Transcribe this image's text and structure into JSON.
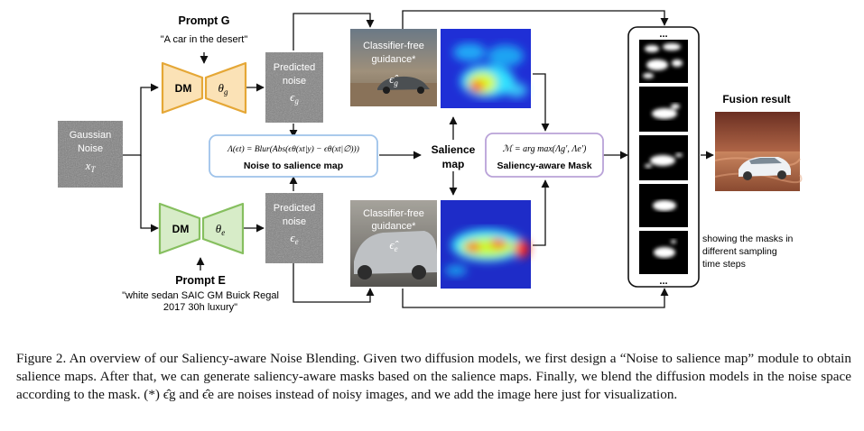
{
  "prompts": {
    "g_title": "Prompt G",
    "g_text": "\"A car in the desert\"",
    "e_title": "Prompt E",
    "e_text_line1": "\"white sedan SAIC GM Buick Regal",
    "e_text_line2": "2017 30h luxury\""
  },
  "models": {
    "dm_label": "DM",
    "theta_g": "θ",
    "theta_g_sub": "g",
    "theta_e": "θ",
    "theta_e_sub": "e"
  },
  "noise_boxes": {
    "gaussian_line1": "Gaussian",
    "gaussian_line2": "Noise",
    "gaussian_var": "x",
    "gaussian_var_sub": "T",
    "pred_line1": "Predicted",
    "pred_line2": "noise",
    "eps": "ϵ",
    "eps_g_sub": "g",
    "eps_e_sub": "e"
  },
  "saliency_module": {
    "formula": "Λ(ϵt) = Blur(Abs(ϵθ(xt|y) − ϵθ(xt|∅)))",
    "title": "Noise to salience map"
  },
  "cfg": {
    "line1": "Classifier-free",
    "line2": "guidance*",
    "hat_g": "ϵ̂",
    "hat_g_sub": "g",
    "hat_e": "ϵ̂",
    "hat_e_sub": "e"
  },
  "salience_label_line1": "Salience",
  "salience_label_line2": "map",
  "mask_module": {
    "formula": "ℳ = arg max(Λg′, Λe′)",
    "title": "Saliency-aware Mask"
  },
  "masks": {
    "dots": "...",
    "note_line1": "showing the masks in",
    "note_line2": "different sampling",
    "note_line3": "time steps"
  },
  "fusion_title": "Fusion result",
  "caption": "Figure 2. An overview of our Saliency-aware Noise Blending. Given two diffusion models, we first design a “Noise to salience map” module to obtain salience maps. After that, we can generate saliency-aware masks based on the salience maps. Finally, we blend the diffusion models in the noise space according to the mask. (*) ϵ̂g and ϵ̂e are noises instead of noisy images, and we add the image here just for visualization.",
  "colors": {
    "dm_g_fill": "#fbe2b6",
    "dm_g_stroke": "#e5a736",
    "dm_e_fill": "#d7ecc8",
    "dm_e_stroke": "#86bf5f",
    "saliency_stroke": "#9fc3ea",
    "mask_stroke": "#b9a2d8"
  }
}
